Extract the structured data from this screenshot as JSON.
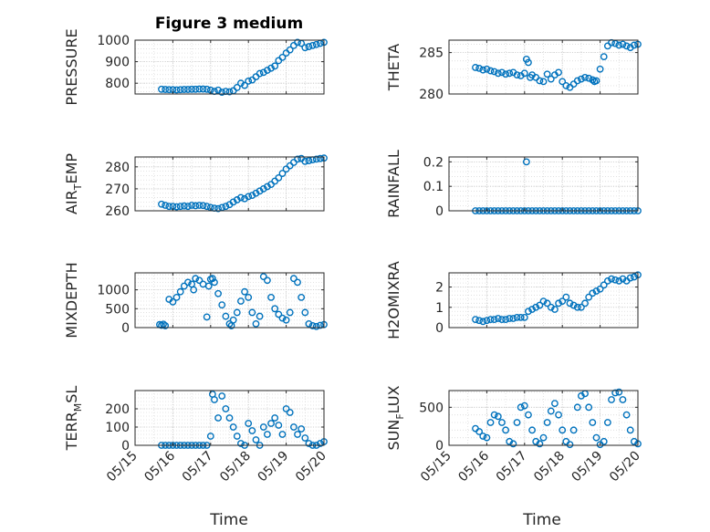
{
  "figure": {
    "title": "Figure 3 medium",
    "xlabel": "Time"
  },
  "colors": {
    "marker": "#0072BD",
    "axis": "#262626",
    "grid": "#dcdcdc"
  },
  "chart_data": [
    {
      "type": "scatter",
      "ylabel_parts": [
        "PRESSURE"
      ],
      "ylim": [
        750,
        1000
      ],
      "yticks": [
        800,
        900,
        1000
      ],
      "xlim": [
        0,
        5
      ],
      "xticks": [
        0,
        1,
        2,
        3,
        4,
        5
      ],
      "xticklabels": [
        "05/15",
        "05/16",
        "05/17",
        "05/18",
        "05/19",
        "05/20"
      ],
      "show_xticklabels": false,
      "grid": true,
      "x": [
        0.7,
        0.8,
        0.9,
        1.0,
        1.1,
        1.2,
        1.3,
        1.4,
        1.5,
        1.6,
        1.7,
        1.8,
        1.9,
        2.0,
        2.1,
        2.2,
        2.3,
        2.4,
        2.5,
        2.6,
        2.7,
        2.8,
        2.9,
        3.0,
        3.1,
        3.2,
        3.3,
        3.4,
        3.5,
        3.6,
        3.7,
        3.8,
        3.9,
        4.0,
        4.1,
        4.2,
        4.3,
        4.4,
        4.5,
        4.6,
        4.7,
        4.8,
        4.9,
        5.0
      ],
      "y": [
        772,
        771,
        770,
        770,
        769,
        770,
        771,
        771,
        772,
        772,
        773,
        773,
        772,
        768,
        762,
        768,
        758,
        762,
        760,
        765,
        780,
        800,
        790,
        810,
        815,
        830,
        845,
        850,
        860,
        870,
        880,
        905,
        920,
        940,
        955,
        975,
        990,
        985,
        965,
        970,
        975,
        980,
        985,
        990
      ]
    },
    {
      "type": "scatter",
      "ylabel_parts": [
        "THETA"
      ],
      "ylim": [
        280,
        286.5
      ],
      "yticks": [
        280,
        285
      ],
      "xlim": [
        0,
        5
      ],
      "xticks": [
        0,
        1,
        2,
        3,
        4,
        5
      ],
      "xticklabels": [
        "05/15",
        "05/16",
        "05/17",
        "05/18",
        "05/19",
        "05/20"
      ],
      "show_xticklabels": false,
      "grid": true,
      "x": [
        0.7,
        0.8,
        0.9,
        1.0,
        1.1,
        1.2,
        1.3,
        1.4,
        1.5,
        1.6,
        1.7,
        1.8,
        1.9,
        2.0,
        2.05,
        2.1,
        2.15,
        2.2,
        2.3,
        2.4,
        2.5,
        2.6,
        2.7,
        2.8,
        2.9,
        3.0,
        3.1,
        3.2,
        3.3,
        3.4,
        3.5,
        3.6,
        3.7,
        3.8,
        3.85,
        3.9,
        4.0,
        4.1,
        4.2,
        4.3,
        4.4,
        4.5,
        4.6,
        4.7,
        4.8,
        4.9,
        5.0
      ],
      "y": [
        283.2,
        283.1,
        282.9,
        283.0,
        282.8,
        282.7,
        282.5,
        282.6,
        282.4,
        282.5,
        282.6,
        282.3,
        282.2,
        282.5,
        284.2,
        283.8,
        282.0,
        282.3,
        282.0,
        281.6,
        281.5,
        282.4,
        281.8,
        282.3,
        282.6,
        281.5,
        281.0,
        280.8,
        281.2,
        281.6,
        281.8,
        282.0,
        281.9,
        281.7,
        281.5,
        281.6,
        283.0,
        284.5,
        285.8,
        286.2,
        286.1,
        285.9,
        286.0,
        285.8,
        285.6,
        285.9,
        286.0
      ]
    },
    {
      "type": "scatter",
      "ylabel_parts": [
        "AIR",
        "T",
        "EMP"
      ],
      "ylim": [
        260,
        284.5
      ],
      "yticks": [
        260,
        270,
        280
      ],
      "xlim": [
        0,
        5
      ],
      "xticks": [
        0,
        1,
        2,
        3,
        4,
        5
      ],
      "xticklabels": [
        "05/15",
        "05/16",
        "05/17",
        "05/18",
        "05/19",
        "05/20"
      ],
      "show_xticklabels": false,
      "grid": true,
      "x": [
        0.7,
        0.8,
        0.9,
        1.0,
        1.1,
        1.2,
        1.3,
        1.4,
        1.5,
        1.6,
        1.7,
        1.8,
        1.9,
        2.0,
        2.1,
        2.2,
        2.3,
        2.4,
        2.5,
        2.6,
        2.7,
        2.8,
        2.9,
        3.0,
        3.1,
        3.2,
        3.3,
        3.4,
        3.5,
        3.6,
        3.7,
        3.8,
        3.9,
        4.0,
        4.1,
        4.2,
        4.3,
        4.4,
        4.5,
        4.6,
        4.7,
        4.8,
        4.9,
        5.0
      ],
      "y": [
        263,
        262.5,
        262,
        262,
        261.8,
        262,
        262.2,
        262,
        262.5,
        262.3,
        262.5,
        262.4,
        262,
        261.5,
        261.2,
        261,
        261.5,
        262,
        262.8,
        264,
        265,
        266,
        265.5,
        266.5,
        267,
        268,
        269,
        270,
        271,
        272,
        273.5,
        275,
        277,
        279,
        280.5,
        282,
        283.5,
        283.8,
        282.5,
        282.8,
        283.2,
        283.5,
        283.8,
        284
      ]
    },
    {
      "type": "scatter",
      "ylabel_parts": [
        "RAINFALL"
      ],
      "ylim": [
        0,
        0.22
      ],
      "yticks": [
        0,
        0.1,
        0.2
      ],
      "xlim": [
        0,
        5
      ],
      "xticks": [
        0,
        1,
        2,
        3,
        4,
        5
      ],
      "xticklabels": [
        "05/15",
        "05/16",
        "05/17",
        "05/18",
        "05/19",
        "05/20"
      ],
      "show_xticklabels": false,
      "grid": true,
      "x": [
        0.7,
        0.8,
        0.9,
        1.0,
        1.1,
        1.2,
        1.3,
        1.4,
        1.5,
        1.6,
        1.7,
        1.8,
        1.9,
        2.0,
        2.1,
        2.2,
        2.3,
        2.4,
        2.5,
        2.6,
        2.7,
        2.8,
        2.9,
        3.0,
        3.1,
        3.2,
        3.3,
        3.4,
        3.5,
        3.6,
        3.7,
        3.8,
        3.9,
        4.0,
        4.1,
        4.2,
        4.3,
        4.4,
        4.5,
        4.6,
        4.7,
        4.8,
        4.9,
        5.0,
        2.05
      ],
      "y": [
        0,
        0,
        0,
        0,
        0,
        0,
        0,
        0,
        0,
        0,
        0,
        0,
        0,
        0,
        0,
        0,
        0,
        0,
        0,
        0,
        0,
        0,
        0,
        0,
        0,
        0,
        0,
        0,
        0,
        0,
        0,
        0,
        0,
        0,
        0,
        0,
        0,
        0,
        0,
        0,
        0,
        0,
        0,
        0,
        0.2
      ]
    },
    {
      "type": "scatter",
      "ylabel_parts": [
        "MIXDEPTH"
      ],
      "ylim": [
        0,
        1450
      ],
      "yticks": [
        0,
        500,
        1000
      ],
      "xlim": [
        0,
        5
      ],
      "xticks": [
        0,
        1,
        2,
        3,
        4,
        5
      ],
      "xticklabels": [
        "05/15",
        "05/16",
        "05/17",
        "05/18",
        "05/19",
        "05/20"
      ],
      "show_xticklabels": false,
      "grid": true,
      "x": [
        0.65,
        0.7,
        0.75,
        0.8,
        0.9,
        1.0,
        1.1,
        1.2,
        1.3,
        1.4,
        1.5,
        1.55,
        1.6,
        1.7,
        1.8,
        1.9,
        1.95,
        2.0,
        2.05,
        2.1,
        2.2,
        2.3,
        2.4,
        2.5,
        2.55,
        2.6,
        2.7,
        2.8,
        2.9,
        3.0,
        3.1,
        3.2,
        3.3,
        3.4,
        3.5,
        3.6,
        3.7,
        3.8,
        3.9,
        4.0,
        4.1,
        4.2,
        4.3,
        4.4,
        4.5,
        4.6,
        4.7,
        4.8,
        4.9,
        5.0
      ],
      "y": [
        80,
        60,
        90,
        50,
        750,
        680,
        800,
        950,
        1100,
        1200,
        1150,
        1000,
        1300,
        1250,
        1150,
        280,
        1100,
        1280,
        1300,
        1200,
        900,
        600,
        300,
        100,
        50,
        200,
        400,
        700,
        950,
        800,
        400,
        100,
        300,
        1350,
        1250,
        800,
        500,
        350,
        250,
        200,
        400,
        1300,
        1200,
        800,
        400,
        100,
        50,
        30,
        60,
        80
      ]
    },
    {
      "type": "scatter",
      "ylabel_parts": [
        "H2OMIXRA"
      ],
      "ylim": [
        0,
        2.7
      ],
      "yticks": [
        0,
        1,
        2
      ],
      "xlim": [
        0,
        5
      ],
      "xticks": [
        0,
        1,
        2,
        3,
        4,
        5
      ],
      "xticklabels": [
        "05/15",
        "05/16",
        "05/17",
        "05/18",
        "05/19",
        "05/20"
      ],
      "show_xticklabels": false,
      "grid": true,
      "x": [
        0.7,
        0.8,
        0.9,
        1.0,
        1.1,
        1.2,
        1.3,
        1.4,
        1.5,
        1.6,
        1.7,
        1.8,
        1.9,
        2.0,
        2.1,
        2.2,
        2.3,
        2.4,
        2.5,
        2.6,
        2.7,
        2.8,
        2.9,
        3.0,
        3.1,
        3.2,
        3.3,
        3.4,
        3.5,
        3.6,
        3.7,
        3.8,
        3.9,
        4.0,
        4.1,
        4.2,
        4.3,
        4.4,
        4.5,
        4.6,
        4.7,
        4.8,
        4.9,
        5.0
      ],
      "y": [
        0.4,
        0.35,
        0.3,
        0.35,
        0.4,
        0.4,
        0.45,
        0.4,
        0.4,
        0.45,
        0.45,
        0.5,
        0.5,
        0.5,
        0.8,
        0.9,
        1.0,
        1.1,
        1.3,
        1.2,
        1.0,
        0.9,
        1.2,
        1.3,
        1.5,
        1.2,
        1.1,
        1.0,
        1.0,
        1.2,
        1.5,
        1.7,
        1.8,
        1.9,
        2.1,
        2.3,
        2.4,
        2.35,
        2.3,
        2.4,
        2.3,
        2.45,
        2.5,
        2.6
      ]
    },
    {
      "type": "scatter",
      "ylabel_parts": [
        "TERR",
        "M",
        "SL"
      ],
      "ylim": [
        0,
        300
      ],
      "yticks": [
        0,
        100,
        200
      ],
      "xlim": [
        0,
        5
      ],
      "xticks": [
        0,
        1,
        2,
        3,
        4,
        5
      ],
      "xticklabels": [
        "05/15",
        "05/16",
        "05/17",
        "05/18",
        "05/19",
        "05/20"
      ],
      "show_xticklabels": true,
      "grid": true,
      "x": [
        0.7,
        0.8,
        0.9,
        1.0,
        1.1,
        1.2,
        1.3,
        1.4,
        1.5,
        1.6,
        1.7,
        1.8,
        1.9,
        2.0,
        2.05,
        2.1,
        2.2,
        2.3,
        2.4,
        2.5,
        2.6,
        2.7,
        2.8,
        2.9,
        3.0,
        3.1,
        3.2,
        3.3,
        3.4,
        3.5,
        3.6,
        3.7,
        3.8,
        3.9,
        4.0,
        4.1,
        4.2,
        4.3,
        4.4,
        4.5,
        4.6,
        4.7,
        4.8,
        4.9,
        5.0
      ],
      "y": [
        0,
        0,
        0,
        0,
        0,
        0,
        0,
        0,
        0,
        0,
        0,
        0,
        0,
        50,
        280,
        250,
        150,
        270,
        200,
        150,
        100,
        50,
        10,
        0,
        120,
        80,
        30,
        0,
        100,
        60,
        120,
        150,
        110,
        60,
        200,
        180,
        100,
        60,
        90,
        40,
        10,
        0,
        0,
        10,
        20
      ]
    },
    {
      "type": "scatter",
      "ylabel_parts": [
        "SUN",
        "F",
        "LUX"
      ],
      "ylim": [
        0,
        720
      ],
      "yticks": [
        0,
        500
      ],
      "xlim": [
        0,
        5
      ],
      "xticks": [
        0,
        1,
        2,
        3,
        4,
        5
      ],
      "xticklabels": [
        "05/15",
        "05/16",
        "05/17",
        "05/18",
        "05/19",
        "05/20"
      ],
      "show_xticklabels": true,
      "grid": true,
      "x": [
        0.7,
        0.8,
        0.9,
        1.0,
        1.1,
        1.2,
        1.3,
        1.4,
        1.5,
        1.6,
        1.7,
        1.8,
        1.9,
        2.0,
        2.1,
        2.2,
        2.3,
        2.4,
        2.5,
        2.6,
        2.7,
        2.8,
        2.9,
        3.0,
        3.1,
        3.2,
        3.3,
        3.4,
        3.5,
        3.6,
        3.7,
        3.8,
        3.9,
        4.0,
        4.1,
        4.2,
        4.3,
        4.4,
        4.5,
        4.6,
        4.7,
        4.8,
        4.9,
        5.0
      ],
      "y": [
        220,
        180,
        120,
        100,
        300,
        400,
        380,
        300,
        200,
        50,
        20,
        300,
        500,
        520,
        400,
        200,
        50,
        20,
        100,
        300,
        450,
        550,
        400,
        200,
        50,
        10,
        200,
        500,
        650,
        680,
        500,
        300,
        100,
        10,
        50,
        300,
        600,
        690,
        700,
        600,
        400,
        200,
        50,
        20
      ]
    }
  ]
}
